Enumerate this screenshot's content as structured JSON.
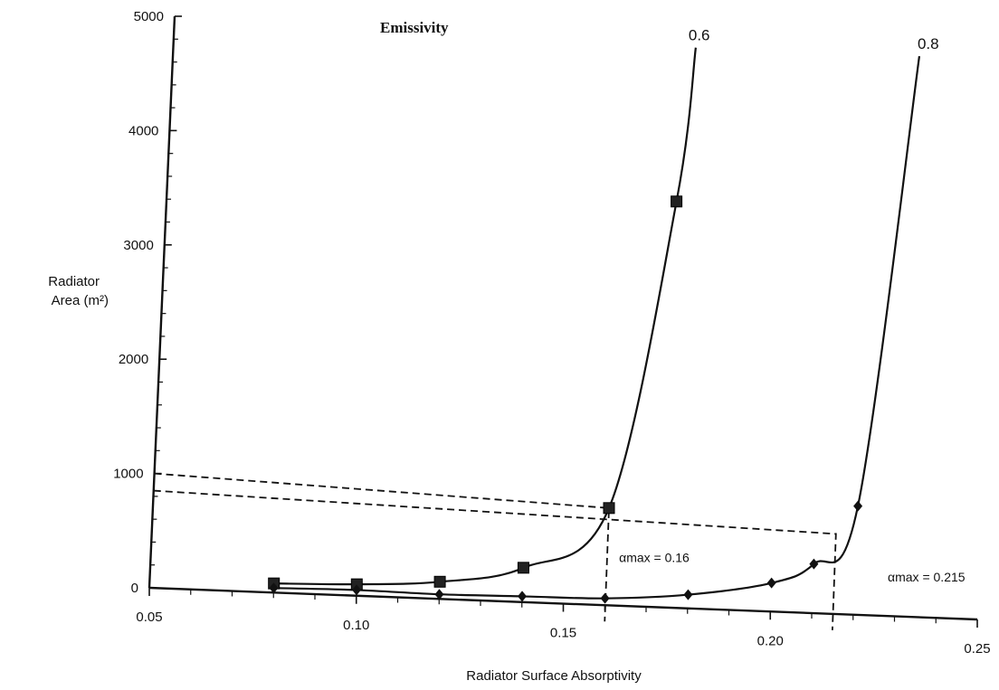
{
  "chart_data": {
    "type": "line",
    "title": "Emissivity",
    "xlabel": "Radiator Surface Absorptivity",
    "ylabel_line1": "Radiator",
    "ylabel_line2": "Area (m²)",
    "xlim": [
      0.05,
      0.25
    ],
    "ylim": [
      0,
      5000
    ],
    "x_ticks": [
      {
        "value": 0.05,
        "label": "0.05"
      },
      {
        "value": 0.1,
        "label": "0.10"
      },
      {
        "value": 0.15,
        "label": "0.15"
      },
      {
        "value": 0.2,
        "label": "0.20"
      },
      {
        "value": 0.25,
        "label": "0.25"
      }
    ],
    "y_ticks": [
      {
        "value": 0,
        "label": "0"
      },
      {
        "value": 1000,
        "label": "1000"
      },
      {
        "value": 2000,
        "label": "2000"
      },
      {
        "value": 3000,
        "label": "3000"
      },
      {
        "value": 4000,
        "label": "4000"
      },
      {
        "value": 5000,
        "label": "5000"
      }
    ],
    "grid": false,
    "series": [
      {
        "name": "0.6",
        "marker": "square",
        "points": [
          {
            "x": 0.08,
            "y": 80
          },
          {
            "x": 0.1,
            "y": 100
          },
          {
            "x": 0.12,
            "y": 150
          },
          {
            "x": 0.14,
            "y": 300
          },
          {
            "x": 0.16,
            "y": 850
          },
          {
            "x": 0.173,
            "y": 3550
          }
        ],
        "curve_end": {
          "x": 0.176,
          "y": 4900
        }
      },
      {
        "name": "0.8",
        "marker": "diamond",
        "points": [
          {
            "x": 0.08,
            "y": 40
          },
          {
            "x": 0.1,
            "y": 50
          },
          {
            "x": 0.12,
            "y": 40
          },
          {
            "x": 0.14,
            "y": 50
          },
          {
            "x": 0.16,
            "y": 60
          },
          {
            "x": 0.18,
            "y": 120
          },
          {
            "x": 0.2,
            "y": 250
          },
          {
            "x": 0.21,
            "y": 430
          },
          {
            "x": 0.22,
            "y": 950
          }
        ],
        "curve_end": {
          "x": 0.23,
          "y": 4900
        }
      }
    ],
    "annotations": [
      {
        "text": "αmax = 0.16",
        "x": 0.163,
        "y": 380
      },
      {
        "text": "αmax = 0.215",
        "x": 0.228,
        "y": 300
      }
    ],
    "reference_lines": [
      {
        "x": 0.16,
        "y": 850,
        "y_start": 1000
      },
      {
        "x": 0.215,
        "y": 700,
        "y_start": 850
      }
    ]
  }
}
